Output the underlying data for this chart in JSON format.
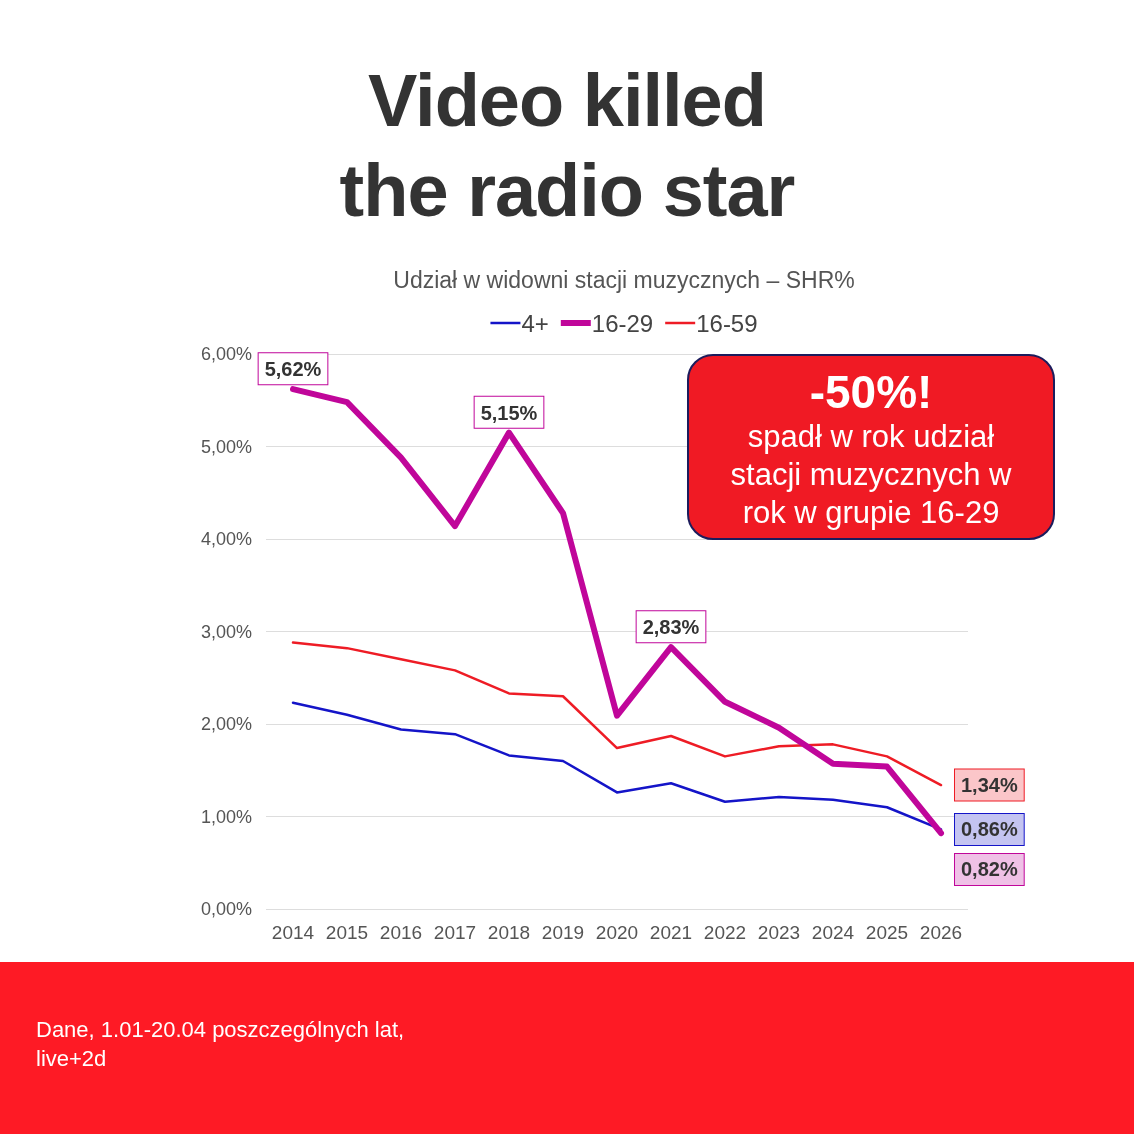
{
  "chart_data": {
    "type": "line",
    "title": "Video killed the radio star",
    "subtitle": "Udział w widowni stacji muzycznych – SHR%",
    "categories": [
      "2014",
      "2015",
      "2016",
      "2017",
      "2018",
      "2019",
      "2020",
      "2021",
      "2022",
      "2023",
      "2024",
      "2025",
      "2026"
    ],
    "series": [
      {
        "name": "4+",
        "color": "#1414c8",
        "values": [
          2.23,
          2.1,
          1.94,
          1.89,
          1.66,
          1.6,
          1.26,
          1.36,
          1.16,
          1.21,
          1.18,
          1.1,
          0.86
        ],
        "value_labels": [
          null,
          null,
          null,
          null,
          null,
          null,
          null,
          null,
          null,
          null,
          null,
          null,
          "0,86%"
        ]
      },
      {
        "name": "16-29",
        "color": "#c0069a",
        "values": [
          5.62,
          5.48,
          4.88,
          4.14,
          5.15,
          4.28,
          2.09,
          2.83,
          2.24,
          1.96,
          1.57,
          1.54,
          0.82
        ],
        "value_labels": [
          "5,62%",
          null,
          null,
          null,
          "5,15%",
          null,
          null,
          "2,83%",
          null,
          null,
          null,
          null,
          "0,82%"
        ]
      },
      {
        "name": "16-59",
        "color": "#ee1c25",
        "values": [
          2.88,
          2.82,
          2.7,
          2.58,
          2.33,
          2.3,
          1.74,
          1.87,
          1.65,
          1.76,
          1.78,
          1.65,
          1.34
        ],
        "value_labels": [
          null,
          null,
          null,
          null,
          null,
          null,
          null,
          null,
          null,
          null,
          null,
          null,
          "1,34%"
        ]
      }
    ],
    "ylim": [
      0,
      6
    ],
    "yticks": [
      {
        "value": 0,
        "label": "0,00%"
      },
      {
        "value": 1,
        "label": "1,00%"
      },
      {
        "value": 2,
        "label": "2,00%"
      },
      {
        "value": 3,
        "label": "3,00%"
      },
      {
        "value": 4,
        "label": "4,00%"
      },
      {
        "value": 5,
        "label": "5,00%"
      },
      {
        "value": 6,
        "label": "6,00%"
      }
    ],
    "grid": "y",
    "legend": "top",
    "annotations": [
      "-50%!",
      "spadł w rok udział stacji muzycznych w rok w grupie 16-29",
      "Dane, 1.01-20.04 poszczególnych lat, live+2d"
    ]
  }
}
